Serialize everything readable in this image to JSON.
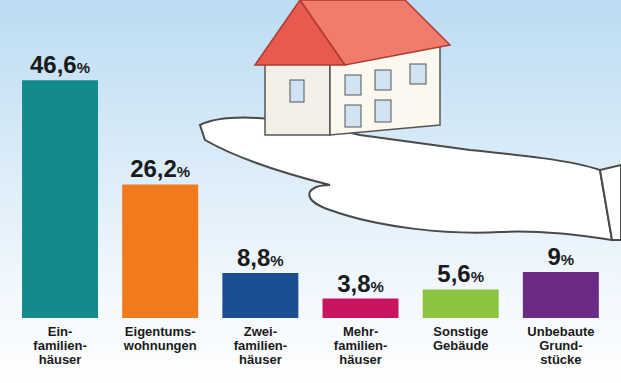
{
  "chart_data": {
    "type": "bar",
    "categories": [
      "Ein-\nfamilien-\nhäuser",
      "Eigentums-\nwohnungen",
      "Zwei-\nfamilien-\nhäuser",
      "Mehr-\nfamilien-\nhäuser",
      "Sonstige\nGebäude",
      "Unbebaute\nGrund-\nstücke"
    ],
    "values": [
      46.6,
      26.2,
      8.8,
      3.8,
      5.6,
      9
    ],
    "value_labels": [
      "46,6%",
      "26,2%",
      "8,8%",
      "3,8%",
      "5,6%",
      "9%"
    ],
    "colors": [
      "#138b8d",
      "#f07a1c",
      "#1b4f92",
      "#c9145f",
      "#8dc43f",
      "#6b2a84"
    ],
    "ylim": [
      0,
      50
    ],
    "yticks": [],
    "data_labels": true,
    "tick_labels": "x",
    "grid": false
  }
}
